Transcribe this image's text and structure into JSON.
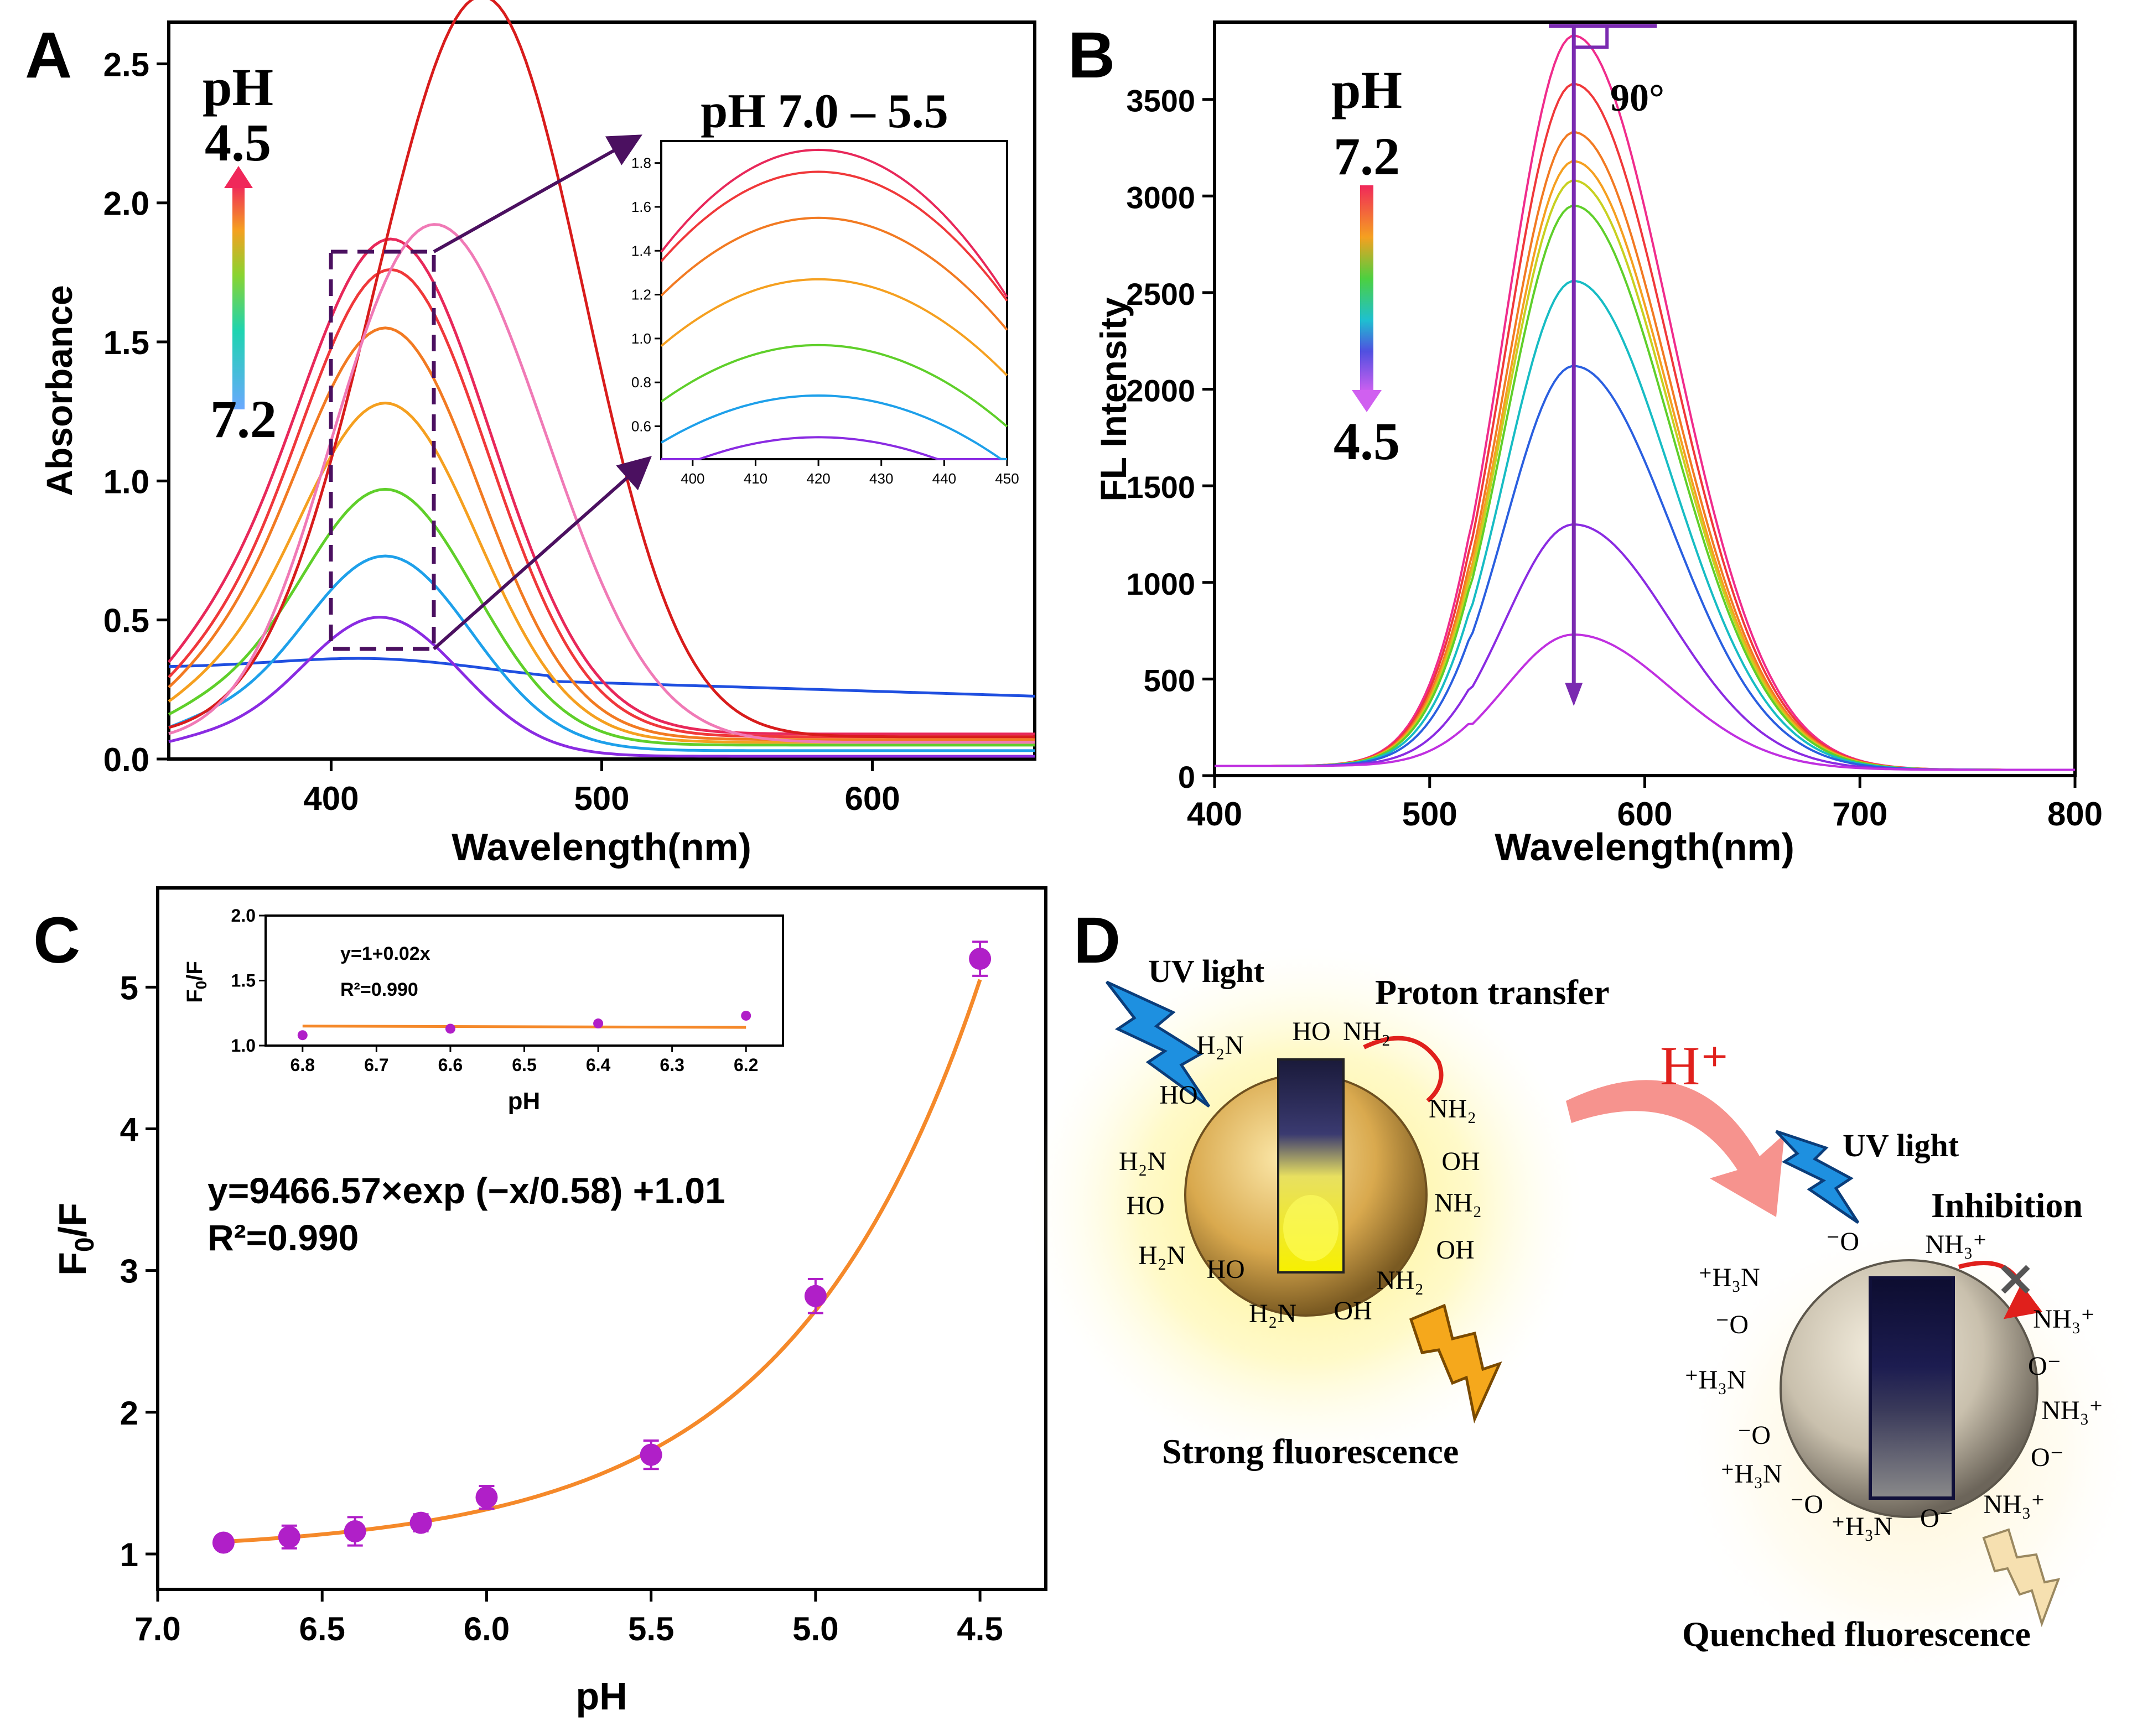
{
  "figure_title": "",
  "chart_data": [
    {
      "panel": "A",
      "type": "line",
      "xlabel": "Wavelength(nm)",
      "ylabel": "Absorbance",
      "xlim": [
        340,
        660
      ],
      "ylim": [
        0,
        2.65
      ],
      "xticks": [
        "400",
        "500",
        "600"
      ],
      "yticks": [
        "0.0",
        "0.5",
        "1.0",
        "1.5",
        "2.0",
        "2.5"
      ],
      "legend_label": "pH",
      "legend_top": "4.5",
      "legend_bottom": "7.2",
      "series_colors": [
        "#1f4fe0",
        "#8a2be2",
        "#1ea0ea",
        "#5fcf2a",
        "#f5a020",
        "#f27a22",
        "#f0383a",
        "#e8285a",
        "#d81c1c",
        "#f07ab6"
      ],
      "series_note": "10 absorption curves from pH 7.2 (bottom) to pH 4.5 (top)",
      "inset": {
        "title": "pH 7.0 – 5.5",
        "xlim": [
          395,
          450
        ],
        "ylim": [
          0.45,
          1.9
        ],
        "xticks": [
          "400",
          "410",
          "420",
          "430",
          "440",
          "450"
        ],
        "yticks": [
          "0.6",
          "0.8",
          "1.0",
          "1.2",
          "1.4",
          "1.6",
          "1.8"
        ]
      }
    },
    {
      "panel": "B",
      "type": "line",
      "xlabel": "Wavelength(nm)",
      "ylabel": "FL Intensity",
      "xlim": [
        400,
        800
      ],
      "ylim": [
        0,
        3900
      ],
      "xticks": [
        "400",
        "500",
        "600",
        "700",
        "800"
      ],
      "yticks": [
        "0",
        "500",
        "1000",
        "1500",
        "2000",
        "2500",
        "3000",
        "3500"
      ],
      "legend_label": "pH",
      "legend_top": "7.2",
      "legend_bottom": "4.5",
      "annotation": "90°",
      "peak_wavelength": 567,
      "peaks": [
        3800,
        3550,
        3300,
        3150,
        3050,
        2920,
        2530,
        2090,
        1270,
        700
      ],
      "series_colors": [
        "#f02c8c",
        "#f0383a",
        "#f27a22",
        "#f5a020",
        "#c8d020",
        "#5fcf2a",
        "#17bcc4",
        "#2a5fe0",
        "#8a2be2",
        "#c030e0"
      ]
    },
    {
      "panel": "C",
      "type": "scatter",
      "xlabel": "pH",
      "ylabel": "F0/F",
      "xlim": [
        7.0,
        4.3
      ],
      "ylim": [
        0.75,
        5.7
      ],
      "xticks": [
        "7.0",
        "6.5",
        "6.0",
        "5.5",
        "5.0",
        "4.5"
      ],
      "yticks": [
        "1",
        "2",
        "3",
        "4",
        "5"
      ],
      "x": [
        6.8,
        6.6,
        6.4,
        6.2,
        6.0,
        5.5,
        5.0,
        4.5
      ],
      "y": [
        1.08,
        1.12,
        1.16,
        1.22,
        1.4,
        1.7,
        2.82,
        5.2
      ],
      "err": [
        0.05,
        0.08,
        0.1,
        0.06,
        0.08,
        0.1,
        0.12,
        0.12
      ],
      "equation": "y=9466.57×exp (−x/0.58) +1.01",
      "r2": "R²=0.990",
      "inset": {
        "xlabel": "pH",
        "ylabel": "F0/F",
        "xlim": [
          6.85,
          6.15
        ],
        "ylim": [
          1.0,
          2.0
        ],
        "xticks": [
          "6.8",
          "6.7",
          "6.6",
          "6.5",
          "6.4",
          "6.3",
          "6.2"
        ],
        "yticks": [
          "1.0",
          "1.5",
          "2.0"
        ],
        "x": [
          6.8,
          6.6,
          6.4,
          6.2
        ],
        "y": [
          1.08,
          1.13,
          1.17,
          1.23
        ],
        "equation": "y=1+0.02x",
        "r2": "R²=0.990"
      }
    }
  ],
  "panel_labels": [
    "A",
    "B",
    "C",
    "D"
  ],
  "schematic": {
    "uv_light": "UV light",
    "proton_transfer": "Proton transfer",
    "strong_fluorescence": "Strong fluorescence",
    "h_plus": "H⁺",
    "inhibition": "Inhibition",
    "quenched_fluorescence": "Quenched fluorescence",
    "left_groups": [
      "HO",
      "NH₂",
      "H₂N",
      "HO",
      "NH₂",
      "H₂N",
      "OH",
      "HO",
      "NH₂",
      "H₂N",
      "OH",
      "HO",
      "H₂N",
      "NH₂",
      "OH"
    ],
    "right_groups": [
      "⁻O",
      "NH₃⁺",
      "⁺H₃N",
      "NH₃⁺",
      "⁻O",
      "O⁻",
      "⁺H₃N",
      "NH₃⁺",
      "⁻O",
      "O⁻",
      "⁺H₃N",
      "⁻O",
      "NH₃⁺",
      "⁺H₃N",
      "O⁻"
    ]
  }
}
